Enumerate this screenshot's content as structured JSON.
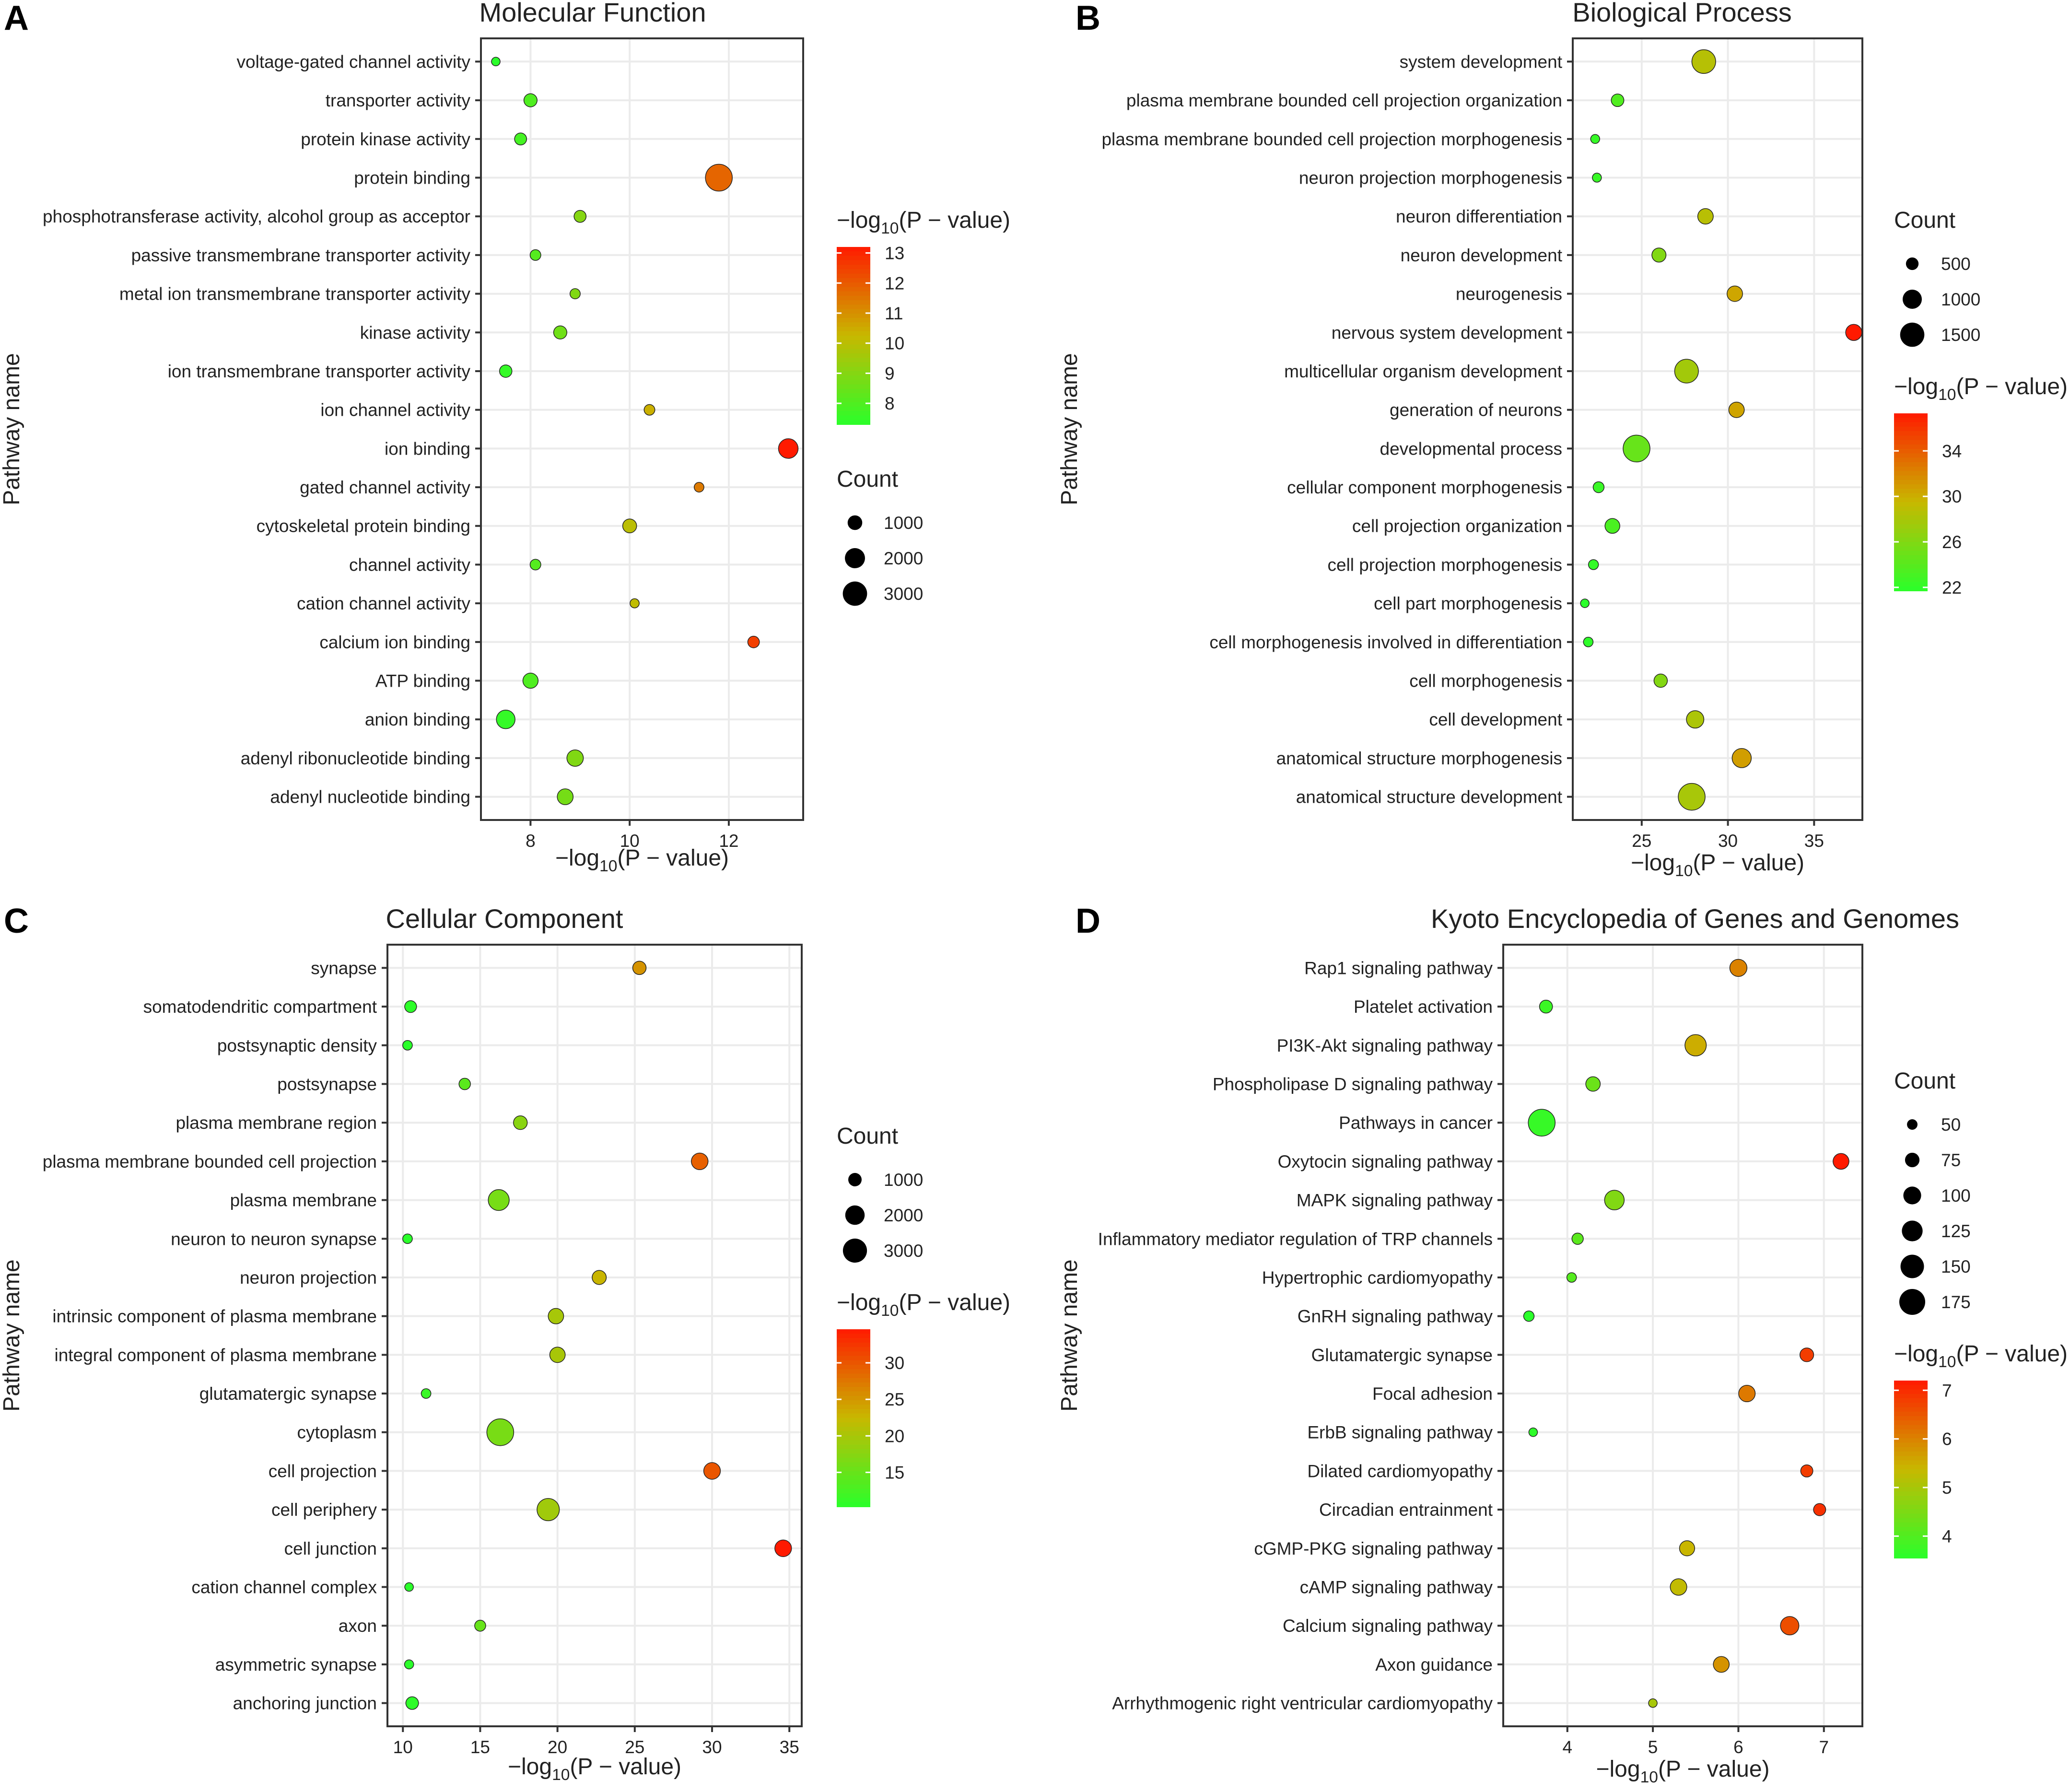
{
  "figure": {
    "x_label_prefix": "−log",
    "x_label_sub": "10",
    "x_label_suffix": "(P − value)",
    "y_label": "Pathway name",
    "color_low": "#2aff2a",
    "color_mid": "#c8b800",
    "color_high": "#ff1a00",
    "bubble_stroke": "#222222"
  },
  "chart_data": [
    {
      "tag": "A",
      "type": "scatter",
      "title": "Molecular Function",
      "xlabel": "−log10(P − value)",
      "ylabel": "Pathway name",
      "xlim": [
        7.0,
        13.5
      ],
      "xticks": [
        8,
        10,
        12
      ],
      "categories": [
        "voltage-gated channel activity",
        "transporter activity",
        "protein kinase activity",
        "protein binding",
        "phosphotransferase activity, alcohol group as acceptor",
        "passive transmembrane transporter activity",
        "metal ion transmembrane transporter activity",
        "kinase activity",
        "ion transmembrane transporter activity",
        "ion channel activity",
        "ion binding",
        "gated channel activity",
        "cytoskeletal protein binding",
        "channel activity",
        "cation channel activity",
        "calcium ion binding",
        "ATP binding",
        "anion binding",
        "adenyl ribonucleotide binding",
        "adenyl nucleotide binding"
      ],
      "x": [
        7.3,
        8.0,
        7.8,
        11.8,
        9.0,
        8.1,
        8.9,
        8.6,
        7.5,
        10.4,
        13.2,
        11.4,
        10.0,
        8.1,
        10.1,
        12.5,
        8.0,
        7.5,
        8.9,
        8.7
      ],
      "count": [
        300,
        800,
        650,
        3700,
        650,
        500,
        450,
        800,
        700,
        500,
        1900,
        400,
        900,
        500,
        350,
        600,
        1100,
        1700,
        1300,
        1200
      ],
      "color_value": [
        7.3,
        8.0,
        7.8,
        11.8,
        9.0,
        8.1,
        8.9,
        8.6,
        7.5,
        10.4,
        13.2,
        11.4,
        10.0,
        8.1,
        10.1,
        12.5,
        8.0,
        7.5,
        8.9,
        8.7
      ],
      "size_legend": {
        "title": "Count",
        "breaks": [
          1000,
          2000,
          3000
        ],
        "labels": [
          "1000",
          "2000",
          "3000"
        ]
      },
      "color_legend": {
        "title_prefix": "−log",
        "title_sub": "10",
        "title_suffix": "(P − value)",
        "range": [
          7.3,
          13.2
        ],
        "breaks": [
          8,
          9,
          10,
          11,
          12,
          13
        ],
        "labels": [
          "8",
          "9",
          "10",
          "11",
          "12",
          "13"
        ]
      },
      "legend_order": [
        "color",
        "size"
      ]
    },
    {
      "tag": "B",
      "type": "scatter",
      "title": "Biological Process",
      "xlabel": "−log10(P − value)",
      "ylabel": "Pathway name",
      "xlim": [
        21.0,
        37.8
      ],
      "xticks": [
        25,
        30,
        35
      ],
      "categories": [
        "system development",
        "plasma membrane bounded cell projection organization",
        "plasma membrane bounded cell projection morphogenesis",
        "neuron projection morphogenesis",
        "neuron differentiation",
        "neuron development",
        "neurogenesis",
        "nervous system development",
        "multicellular organism development",
        "generation of neurons",
        "developmental process",
        "cellular component morphogenesis",
        "cell projection organization",
        "cell projection morphogenesis",
        "cell part morphogenesis",
        "cell morphogenesis involved in differentiation",
        "cell morphogenesis",
        "cell development",
        "anatomical structure morphogenesis",
        "anatomical structure development"
      ],
      "x": [
        28.6,
        23.6,
        22.3,
        22.4,
        28.7,
        26.0,
        30.4,
        37.3,
        27.6,
        30.5,
        24.7,
        22.5,
        23.3,
        22.2,
        21.7,
        21.9,
        26.1,
        28.1,
        30.8,
        27.9
      ],
      "count": [
        1450,
        500,
        300,
        300,
        700,
        600,
        700,
        750,
        1450,
        700,
        1800,
        400,
        650,
        350,
        280,
        330,
        550,
        850,
        1000,
        1800
      ],
      "color_value": [
        28.6,
        23.6,
        22.3,
        22.4,
        28.7,
        26.0,
        30.4,
        37.3,
        27.6,
        30.5,
        24.7,
        22.5,
        23.3,
        22.2,
        21.7,
        21.9,
        26.1,
        28.1,
        30.8,
        27.9
      ],
      "size_legend": {
        "title": "Count",
        "breaks": [
          500,
          1000,
          1500
        ],
        "labels": [
          "500",
          "1000",
          "1500"
        ]
      },
      "color_legend": {
        "title_prefix": "−log",
        "title_sub": "10",
        "title_suffix": "(P − value)",
        "range": [
          21.7,
          37.3
        ],
        "breaks": [
          22,
          26,
          30,
          34
        ],
        "labels": [
          "22",
          "26",
          "30",
          "34"
        ]
      },
      "legend_order": [
        "size",
        "color"
      ]
    },
    {
      "tag": "C",
      "type": "scatter",
      "title": "Cellular Component",
      "xlabel": "−log10(P − value)",
      "ylabel": "Pathway name",
      "xlim": [
        9.0,
        35.8
      ],
      "xticks": [
        10,
        15,
        20,
        25,
        30,
        35
      ],
      "categories": [
        "synapse",
        "somatodendritic compartment",
        "postsynaptic density",
        "postsynapse",
        "plasma membrane region",
        "plasma membrane bounded cell projection",
        "plasma membrane",
        "neuron to neuron synapse",
        "neuron projection",
        "intrinsic component of plasma membrane",
        "integral component of plasma membrane",
        "glutamatergic synapse",
        "cytoplasm",
        "cell projection",
        "cell periphery",
        "cell junction",
        "cation channel complex",
        "axon",
        "asymmetric synapse",
        "anchoring junction"
      ],
      "x": [
        25.3,
        10.5,
        10.3,
        14.0,
        17.6,
        29.2,
        16.2,
        10.3,
        22.7,
        19.9,
        20.0,
        11.5,
        16.3,
        30.0,
        19.4,
        34.6,
        10.4,
        15.0,
        10.4,
        10.6
      ],
      "count": [
        1000,
        800,
        550,
        750,
        1050,
        1500,
        2300,
        550,
        1100,
        1300,
        1300,
        550,
        3700,
        1500,
        2600,
        1500,
        450,
        700,
        500,
        900
      ],
      "color_value": [
        25.3,
        10.5,
        10.3,
        14.0,
        17.6,
        29.2,
        16.2,
        10.3,
        22.7,
        19.9,
        20.0,
        11.5,
        16.3,
        30.0,
        19.4,
        34.6,
        10.4,
        15.0,
        10.4,
        10.6
      ],
      "size_legend": {
        "title": "Count",
        "breaks": [
          1000,
          2000,
          3000
        ],
        "labels": [
          "1000",
          "2000",
          "3000"
        ]
      },
      "color_legend": {
        "title_prefix": "−log",
        "title_sub": "10",
        "title_suffix": "(P − value)",
        "range": [
          10.3,
          34.6
        ],
        "breaks": [
          15,
          20,
          25,
          30
        ],
        "labels": [
          "15",
          "20",
          "25",
          "30"
        ]
      },
      "legend_order": [
        "size",
        "color"
      ]
    },
    {
      "tag": "D",
      "type": "scatter",
      "title": "Kyoto Encyclopedia of Genes and Genomes",
      "xlabel": "−log10(P − value)",
      "ylabel": "Pathway name",
      "xlim": [
        3.25,
        7.45
      ],
      "xticks": [
        4,
        5,
        6,
        7
      ],
      "categories": [
        "Rap1 signaling pathway",
        "Platelet activation",
        "PI3K-Akt signaling pathway",
        "Phospholipase D signaling pathway",
        "Pathways in cancer",
        "Oxytocin signaling pathway",
        "MAPK signaling pathway",
        "Inflammatory mediator regulation of TRP channels",
        "Hypertrophic cardiomyopathy",
        "GnRH signaling pathway",
        "Glutamatergic synapse",
        "Focal adhesion",
        "ErbB signaling pathway",
        "Dilated cardiomyopathy",
        "Circadian entrainment",
        "cGMP-PKG signaling pathway",
        "cAMP signaling pathway",
        "Calcium signaling pathway",
        "Axon guidance",
        "Arrhythmogenic right ventricular cardiomyopathy"
      ],
      "x": [
        6.0,
        3.75,
        5.5,
        4.3,
        3.7,
        7.2,
        4.55,
        4.12,
        4.05,
        3.55,
        6.8,
        6.1,
        3.6,
        6.8,
        6.95,
        5.4,
        5.3,
        6.6,
        5.8,
        5.0
      ],
      "count": [
        95,
        65,
        130,
        75,
        185,
        85,
        115,
        55,
        45,
        50,
        70,
        90,
        40,
        60,
        60,
        80,
        90,
        105,
        85,
        40
      ],
      "color_value": [
        6.0,
        3.75,
        5.5,
        4.3,
        3.7,
        7.2,
        4.55,
        4.12,
        4.05,
        3.55,
        6.8,
        6.1,
        3.6,
        6.8,
        6.95,
        5.4,
        5.3,
        6.6,
        5.8,
        5.0
      ],
      "size_legend": {
        "title": "Count",
        "breaks": [
          50,
          75,
          100,
          125,
          150,
          175
        ],
        "labels": [
          "50",
          "75",
          "100",
          "125",
          "150",
          "175"
        ]
      },
      "color_legend": {
        "title_prefix": "−log",
        "title_sub": "10",
        "title_suffix": "(P − value)",
        "range": [
          3.55,
          7.2
        ],
        "breaks": [
          4,
          5,
          6,
          7
        ],
        "labels": [
          "4",
          "5",
          "6",
          "7"
        ]
      },
      "legend_order": [
        "size",
        "color"
      ]
    }
  ]
}
